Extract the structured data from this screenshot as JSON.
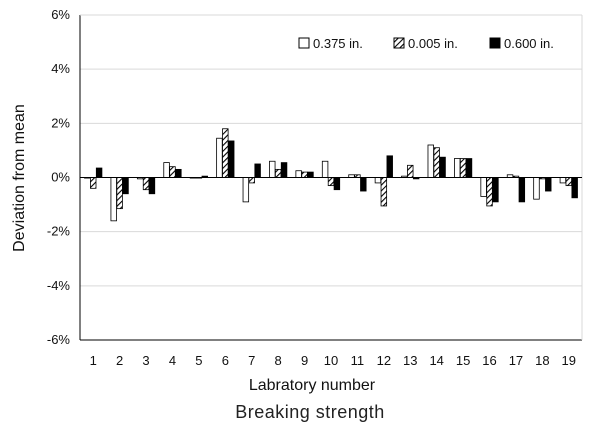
{
  "chart_data": {
    "type": "bar",
    "caption": "Breaking strength",
    "xlabel": "Labratory number",
    "ylabel": "Deviation from mean",
    "categories": [
      "1",
      "2",
      "3",
      "4",
      "5",
      "6",
      "7",
      "8",
      "9",
      "10",
      "11",
      "12",
      "13",
      "14",
      "15",
      "16",
      "17",
      "18",
      "19"
    ],
    "ylim": [
      -6,
      6
    ],
    "y_ticks": [
      -6,
      -4,
      -2,
      0,
      2,
      4,
      6
    ],
    "y_tick_labels": [
      "-6%",
      "-4%",
      "-2%",
      "0%",
      "2%",
      "4%",
      "6%"
    ],
    "grid": true,
    "legend_position": "top-right",
    "series": [
      {
        "name": "0.375 in.",
        "fill": "white",
        "values": [
          0.0,
          -1.6,
          -0.05,
          0.55,
          0.0,
          1.45,
          -0.9,
          0.6,
          0.25,
          0.6,
          0.1,
          -0.2,
          0.05,
          1.2,
          0.7,
          -0.7,
          0.1,
          -0.8,
          -0.2
        ]
      },
      {
        "name": "0.005 in.",
        "fill": "hatched",
        "values": [
          -0.4,
          -1.15,
          -0.45,
          0.4,
          0.0,
          1.8,
          -0.2,
          0.3,
          0.2,
          -0.3,
          0.1,
          -1.05,
          0.45,
          1.1,
          0.7,
          -1.05,
          0.05,
          -0.05,
          -0.3
        ]
      },
      {
        "name": "0.600 in.",
        "fill": "black",
        "values": [
          0.35,
          -0.6,
          -0.6,
          0.3,
          0.05,
          1.35,
          0.5,
          0.55,
          0.2,
          -0.45,
          -0.5,
          0.8,
          -0.05,
          0.75,
          0.7,
          -0.9,
          -0.9,
          -0.5,
          -0.75
        ]
      }
    ]
  }
}
